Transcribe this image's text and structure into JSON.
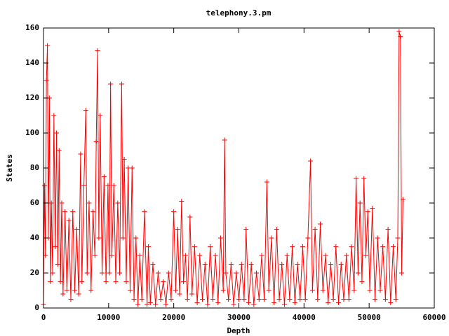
{
  "chart_data": {
    "type": "line",
    "title": "telephony.3.pm",
    "x_label": "Depth",
    "y_label": "States",
    "xlim": [
      0,
      60000
    ],
    "xticks": [
      0,
      10000,
      20000,
      30000,
      40000,
      50000,
      60000
    ],
    "ylim": [
      0,
      160
    ],
    "yticks": [
      0,
      20,
      40,
      60,
      80,
      100,
      120,
      140,
      160
    ],
    "marker": "+",
    "series": [
      {
        "color": "#ff0000",
        "x": [
          0,
          150,
          300,
          450,
          600,
          750,
          900,
          1050,
          1200,
          1400,
          1600,
          1800,
          2000,
          2200,
          2400,
          2600,
          2800,
          3000,
          3300,
          3600,
          3900,
          4200,
          4500,
          4800,
          5100,
          5400,
          5700,
          5900,
          6200,
          6500,
          6700,
          7000,
          7300,
          7600,
          7900,
          8100,
          8300,
          8500,
          8700,
          9000,
          9300,
          9600,
          9900,
          10100,
          10300,
          10500,
          10800,
          11100,
          11400,
          11700,
          12000,
          12200,
          12400,
          12700,
          13000,
          13300,
          13600,
          13900,
          14200,
          14500,
          14800,
          15100,
          15500,
          15900,
          16100,
          16400,
          16800,
          17200,
          17600,
          18000,
          18400,
          18800,
          19200,
          19600,
          20000,
          20300,
          20600,
          20900,
          21200,
          21500,
          21800,
          22100,
          22500,
          22800,
          23200,
          23600,
          24000,
          24400,
          24800,
          25200,
          25600,
          26000,
          26400,
          26800,
          27200,
          27600,
          27800,
          28000,
          28400,
          28800,
          29200,
          29600,
          30000,
          30400,
          30800,
          31100,
          31500,
          31900,
          32300,
          32700,
          33100,
          33500,
          33900,
          34300,
          34600,
          35000,
          35400,
          35800,
          36200,
          36600,
          37000,
          37400,
          37800,
          38200,
          38600,
          39000,
          39400,
          39800,
          40200,
          40600,
          41000,
          41300,
          41700,
          42100,
          42500,
          42900,
          43300,
          43700,
          44100,
          44500,
          44900,
          45300,
          45700,
          46100,
          46500,
          46900,
          47300,
          47700,
          48000,
          48300,
          48600,
          48900,
          49200,
          49500,
          49800,
          50100,
          50500,
          50900,
          51300,
          51700,
          52100,
          52500,
          52900,
          53300,
          53700,
          54100,
          54400,
          54600,
          54800,
          55000,
          55200
        ],
        "values": [
          2,
          70,
          30,
          130,
          150,
          40,
          120,
          15,
          60,
          20,
          110,
          35,
          100,
          25,
          90,
          15,
          60,
          8,
          55,
          10,
          50,
          5,
          55,
          10,
          45,
          8,
          88,
          15,
          70,
          113,
          20,
          60,
          10,
          55,
          30,
          95,
          147,
          40,
          110,
          20,
          75,
          15,
          70,
          20,
          128,
          30,
          70,
          15,
          60,
          20,
          128,
          40,
          85,
          15,
          80,
          10,
          80,
          5,
          40,
          2,
          30,
          5,
          55,
          2,
          35,
          3,
          25,
          2,
          20,
          5,
          15,
          2,
          20,
          5,
          55,
          10,
          45,
          8,
          61,
          15,
          30,
          5,
          52,
          8,
          35,
          3,
          30,
          5,
          25,
          2,
          35,
          5,
          30,
          3,
          40,
          10,
          96,
          20,
          5,
          25,
          2,
          20,
          5,
          25,
          5,
          45,
          3,
          25,
          2,
          20,
          5,
          30,
          5,
          72,
          10,
          40,
          3,
          45,
          5,
          25,
          2,
          30,
          5,
          35,
          3,
          25,
          5,
          35,
          5,
          40,
          84,
          10,
          45,
          5,
          48,
          10,
          30,
          3,
          25,
          5,
          35,
          3,
          25,
          5,
          30,
          5,
          35,
          10,
          74,
          20,
          60,
          15,
          74,
          30,
          55,
          10,
          57,
          5,
          40,
          10,
          35,
          5,
          45,
          3,
          35,
          5,
          40,
          158,
          155,
          20,
          62
        ]
      }
    ]
  }
}
